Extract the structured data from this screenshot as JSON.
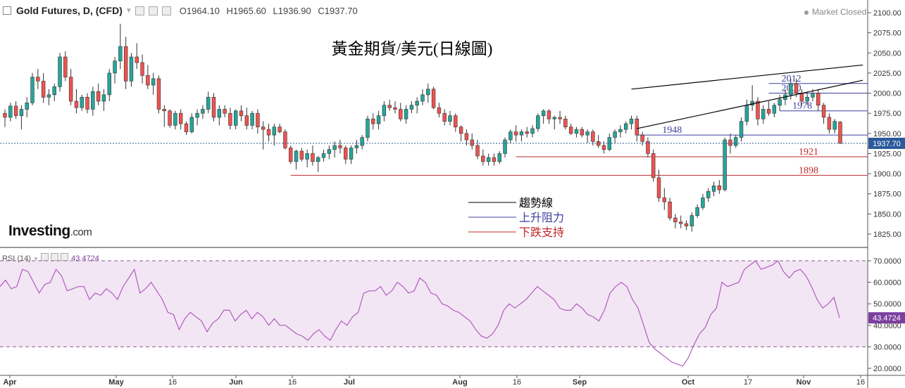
{
  "header": {
    "symbol": "Gold Futures, D, (CFD)",
    "open": "O1964.10",
    "high": "H1965.60",
    "low": "L1936.90",
    "close": "C1937.70",
    "status": "Market Closed"
  },
  "logo": {
    "main": "Investing",
    "suffix": ".com"
  },
  "colors": {
    "up": "#26a69a",
    "down": "#ef5350",
    "resistance": "#3f3fa0",
    "support": "#c0282a",
    "trend": "#000000",
    "rsi": "#b05cc0",
    "rsi_band": "#f3e6f4",
    "last_price": "#2a5a9a",
    "rsi_badge": "#7b3f9e"
  },
  "chart_data": [
    {
      "type": "candlestick",
      "title": "黃金期貨/美元(日線圖)",
      "ylim": [
        1810,
        2110
      ],
      "y_ticks": [
        1825.0,
        1850.0,
        1875.0,
        1900.0,
        1925.0,
        1950.0,
        1975.0,
        2000.0,
        2025.0,
        2050.0,
        2075.0,
        2100.0
      ],
      "x_ticks": [
        "Apr",
        "May",
        "16",
        "Jun",
        "16",
        "Jul",
        "Aug",
        "16",
        "Sep",
        "Oct",
        "17",
        "Nov",
        "16"
      ],
      "last_price": 1937.7,
      "last_price_label": "1937.70",
      "candles": [
        [
          1975,
          1980,
          1958,
          1970
        ],
        [
          1970,
          1988,
          1965,
          1984
        ],
        [
          1984,
          1990,
          1968,
          1972
        ],
        [
          1972,
          1985,
          1955,
          1980
        ],
        [
          1980,
          1995,
          1970,
          1988
        ],
        [
          1988,
          2025,
          1985,
          2020
        ],
        [
          2020,
          2030,
          2005,
          2015
        ],
        [
          2015,
          2025,
          1988,
          1995
        ],
        [
          1995,
          2005,
          1985,
          1998
        ],
        [
          1998,
          2012,
          1990,
          2008
        ],
        [
          2008,
          2050,
          2002,
          2045
        ],
        [
          2045,
          2052,
          2015,
          2020
        ],
        [
          2020,
          2030,
          1985,
          1990
        ],
        [
          1990,
          2005,
          1975,
          1982
        ],
        [
          1982,
          1998,
          1978,
          1995
        ],
        [
          1995,
          2000,
          1975,
          1980
        ],
        [
          1980,
          2008,
          1972,
          2002
        ],
        [
          2002,
          2012,
          1985,
          1990
        ],
        [
          1990,
          2005,
          1978,
          1998
        ],
        [
          1998,
          2030,
          1990,
          2025
        ],
        [
          2025,
          2045,
          2012,
          2040
        ],
        [
          2040,
          2086,
          2030,
          2058
        ],
        [
          2058,
          2070,
          2005,
          2015
        ],
        [
          2015,
          2050,
          2008,
          2045
        ],
        [
          2045,
          2062,
          2030,
          2038
        ],
        [
          2038,
          2048,
          2012,
          2022
        ],
        [
          2022,
          2035,
          2005,
          2010
        ],
        [
          2010,
          2025,
          1998,
          2018
        ],
        [
          2018,
          2022,
          1975,
          1980
        ],
        [
          1980,
          1985,
          1958,
          1978
        ],
        [
          1978,
          1980,
          1957,
          1960
        ],
        [
          1960,
          1978,
          1955,
          1975
        ],
        [
          1975,
          1980,
          1955,
          1962
        ],
        [
          1962,
          1965,
          1948,
          1952
        ],
        [
          1952,
          1975,
          1950,
          1970
        ],
        [
          1970,
          1980,
          1960,
          1975
        ],
        [
          1975,
          1985,
          1968,
          1980
        ],
        [
          1980,
          2002,
          1975,
          1995
        ],
        [
          1995,
          2000,
          1965,
          1970
        ],
        [
          1970,
          1985,
          1960,
          1980
        ],
        [
          1980,
          1985,
          1970,
          1975
        ],
        [
          1975,
          1982,
          1955,
          1960
        ],
        [
          1960,
          1980,
          1955,
          1978
        ],
        [
          1978,
          1985,
          1965,
          1972
        ],
        [
          1972,
          1982,
          1955,
          1960
        ],
        [
          1960,
          1978,
          1955,
          1975
        ],
        [
          1975,
          1980,
          1950,
          1958
        ],
        [
          1958,
          1965,
          1930,
          1955
        ],
        [
          1955,
          1962,
          1940,
          1948
        ],
        [
          1948,
          1962,
          1935,
          1958
        ],
        [
          1958,
          1962,
          1950,
          1952
        ],
        [
          1952,
          1955,
          1930,
          1932
        ],
        [
          1932,
          1935,
          1912,
          1915
        ],
        [
          1915,
          1930,
          1905,
          1928
        ],
        [
          1928,
          1932,
          1915,
          1918
        ],
        [
          1918,
          1930,
          1908,
          1925
        ],
        [
          1925,
          1935,
          1910,
          1915
        ],
        [
          1915,
          1922,
          1902,
          1920
        ],
        [
          1920,
          1930,
          1915,
          1925
        ],
        [
          1925,
          1935,
          1918,
          1930
        ],
        [
          1930,
          1940,
          1920,
          1935
        ],
        [
          1935,
          1942,
          1925,
          1932
        ],
        [
          1932,
          1935,
          1912,
          1918
        ],
        [
          1918,
          1935,
          1912,
          1932
        ],
        [
          1932,
          1942,
          1925,
          1935
        ],
        [
          1935,
          1948,
          1930,
          1945
        ],
        [
          1945,
          1972,
          1940,
          1968
        ],
        [
          1968,
          1975,
          1955,
          1962
        ],
        [
          1962,
          1978,
          1955,
          1972
        ],
        [
          1972,
          1990,
          1965,
          1985
        ],
        [
          1985,
          1992,
          1978,
          1982
        ],
        [
          1982,
          1990,
          1975,
          1980
        ],
        [
          1980,
          1988,
          1965,
          1968
        ],
        [
          1968,
          1985,
          1962,
          1980
        ],
        [
          1980,
          1990,
          1975,
          1985
        ],
        [
          1985,
          1995,
          1975,
          1990
        ],
        [
          1990,
          2005,
          1985,
          1998
        ],
        [
          1998,
          2012,
          1988,
          2005
        ],
        [
          2005,
          2008,
          1980,
          1982
        ],
        [
          1982,
          1988,
          1970,
          1975
        ],
        [
          1975,
          1980,
          1960,
          1965
        ],
        [
          1965,
          1978,
          1960,
          1972
        ],
        [
          1972,
          1975,
          1952,
          1958
        ],
        [
          1958,
          1960,
          1940,
          1950
        ],
        [
          1950,
          1955,
          1935,
          1942
        ],
        [
          1942,
          1950,
          1930,
          1935
        ],
        [
          1935,
          1942,
          1918,
          1922
        ],
        [
          1922,
          1930,
          1910,
          1915
        ],
        [
          1915,
          1925,
          1910,
          1920
        ],
        [
          1920,
          1925,
          1910,
          1915
        ],
        [
          1915,
          1928,
          1912,
          1925
        ],
        [
          1925,
          1945,
          1920,
          1942
        ],
        [
          1942,
          1955,
          1938,
          1952
        ],
        [
          1952,
          1960,
          1940,
          1948
        ],
        [
          1948,
          1955,
          1940,
          1952
        ],
        [
          1952,
          1958,
          1945,
          1950
        ],
        [
          1950,
          1960,
          1945,
          1956
        ],
        [
          1956,
          1975,
          1952,
          1972
        ],
        [
          1972,
          1980,
          1962,
          1978
        ],
        [
          1978,
          1980,
          1962,
          1968
        ],
        [
          1968,
          1972,
          1955,
          1970
        ],
        [
          1970,
          1978,
          1962,
          1968
        ],
        [
          1968,
          1972,
          1955,
          1958
        ],
        [
          1958,
          1962,
          1948,
          1950
        ],
        [
          1950,
          1958,
          1945,
          1955
        ],
        [
          1955,
          1958,
          1945,
          1948
        ],
        [
          1948,
          1955,
          1938,
          1952
        ],
        [
          1952,
          1955,
          1935,
          1940
        ],
        [
          1940,
          1948,
          1932,
          1935
        ],
        [
          1935,
          1940,
          1925,
          1930
        ],
        [
          1930,
          1950,
          1928,
          1945
        ],
        [
          1945,
          1955,
          1938,
          1952
        ],
        [
          1952,
          1960,
          1945,
          1955
        ],
        [
          1955,
          1965,
          1950,
          1962
        ],
        [
          1962,
          1972,
          1955,
          1968
        ],
        [
          1968,
          1972,
          1940,
          1948
        ],
        [
          1948,
          1952,
          1935,
          1940
        ],
        [
          1940,
          1945,
          1920,
          1925
        ],
        [
          1925,
          1930,
          1890,
          1895
        ],
        [
          1895,
          1905,
          1865,
          1870
        ],
        [
          1870,
          1882,
          1855,
          1865
        ],
        [
          1865,
          1870,
          1842,
          1845
        ],
        [
          1845,
          1850,
          1832,
          1840
        ],
        [
          1840,
          1848,
          1832,
          1838
        ],
        [
          1838,
          1842,
          1830,
          1835
        ],
        [
          1835,
          1852,
          1828,
          1848
        ],
        [
          1848,
          1862,
          1845,
          1858
        ],
        [
          1858,
          1875,
          1855,
          1870
        ],
        [
          1870,
          1882,
          1865,
          1878
        ],
        [
          1878,
          1890,
          1872,
          1885
        ],
        [
          1885,
          1892,
          1875,
          1880
        ],
        [
          1880,
          1945,
          1878,
          1942
        ],
        [
          1942,
          1950,
          1925,
          1935
        ],
        [
          1935,
          1948,
          1932,
          1945
        ],
        [
          1945,
          1970,
          1940,
          1965
        ],
        [
          1965,
          1992,
          1960,
          1985
        ],
        [
          1985,
          2010,
          1978,
          1990
        ],
        [
          1990,
          1995,
          1960,
          1968
        ],
        [
          1968,
          1985,
          1962,
          1980
        ],
        [
          1980,
          1990,
          1972,
          1975
        ],
        [
          1975,
          1988,
          1970,
          1985
        ],
        [
          1985,
          1998,
          1978,
          1992
        ],
        [
          1992,
          2005,
          1985,
          1998
        ],
        [
          1998,
          2018,
          1992,
          2012
        ],
        [
          2012,
          2018,
          1995,
          2000
        ],
        [
          2000,
          2005,
          1985,
          1990
        ],
        [
          1990,
          2002,
          1985,
          1995
        ],
        [
          1995,
          2005,
          1990,
          2000
        ],
        [
          2000,
          2005,
          1978,
          1985
        ],
        [
          1985,
          1988,
          1962,
          1970
        ],
        [
          1970,
          1975,
          1950,
          1955
        ],
        [
          1955,
          1968,
          1950,
          1965
        ],
        [
          1964.1,
          1965.6,
          1936.9,
          1937.7
        ]
      ],
      "trend_lines": [
        {
          "from": [
            114,
            2005
          ],
          "to": [
            151,
            2035
          ],
          "color": "#000000"
        },
        {
          "from": [
            115,
            1956
          ],
          "to": [
            151,
            2016
          ],
          "color": "#000000"
        }
      ],
      "resistance_levels": [
        {
          "value": 2012,
          "label": "2012",
          "from": 139
        },
        {
          "value": 2000,
          "label": "2000",
          "from": 139
        },
        {
          "value": 1978,
          "label": "1978",
          "from": 141
        },
        {
          "value": 1948,
          "label": "1948",
          "from": 115
        }
      ],
      "support_levels": [
        {
          "value": 1921,
          "label": "1921",
          "from": 93
        },
        {
          "value": 1898,
          "label": "1898",
          "from": 52
        }
      ],
      "legend": [
        {
          "label": "趨勢線",
          "color": "#000000"
        },
        {
          "label": "上升阻力",
          "color": "#3f3fa0"
        },
        {
          "label": "下跌支持",
          "color": "#c0282a"
        }
      ]
    },
    {
      "type": "line",
      "title": "RSI (14)",
      "last_value": "43.4724",
      "ylim": [
        17,
        73
      ],
      "y_ticks": [
        20.0,
        30.0,
        40.0,
        50.0,
        60.0,
        70.0
      ],
      "band": [
        30,
        70
      ],
      "values": [
        58,
        61,
        57,
        58,
        66,
        65,
        60,
        55,
        59,
        60,
        66,
        63,
        56,
        57,
        58,
        58,
        52,
        55,
        54,
        57,
        55,
        52,
        58,
        62,
        66,
        55,
        57,
        60,
        56,
        52,
        46,
        45,
        38,
        43,
        46,
        44,
        42,
        37,
        41,
        43,
        47,
        47,
        42,
        45,
        47,
        43,
        46,
        44,
        40,
        43,
        40,
        40,
        38,
        36,
        35,
        33,
        36,
        38,
        35,
        33,
        38,
        42,
        40,
        44,
        46,
        55,
        56,
        56,
        58,
        54,
        56,
        60,
        58,
        55,
        56,
        62,
        60,
        55,
        54,
        50,
        49,
        47,
        46,
        44,
        42,
        38,
        35,
        34,
        36,
        40,
        47,
        50,
        48,
        50,
        52,
        55,
        58,
        56,
        54,
        52,
        48,
        47,
        47,
        50,
        48,
        45,
        44,
        42,
        47,
        55,
        58,
        60,
        58,
        52,
        48,
        40,
        32,
        29,
        27,
        25,
        23,
        22,
        21,
        25,
        31,
        36,
        39,
        45,
        48,
        60,
        58,
        59,
        60,
        66,
        68,
        70,
        66,
        67,
        68,
        70,
        65,
        62,
        65,
        66,
        63,
        58,
        52,
        48,
        50,
        53,
        43.47
      ]
    }
  ]
}
